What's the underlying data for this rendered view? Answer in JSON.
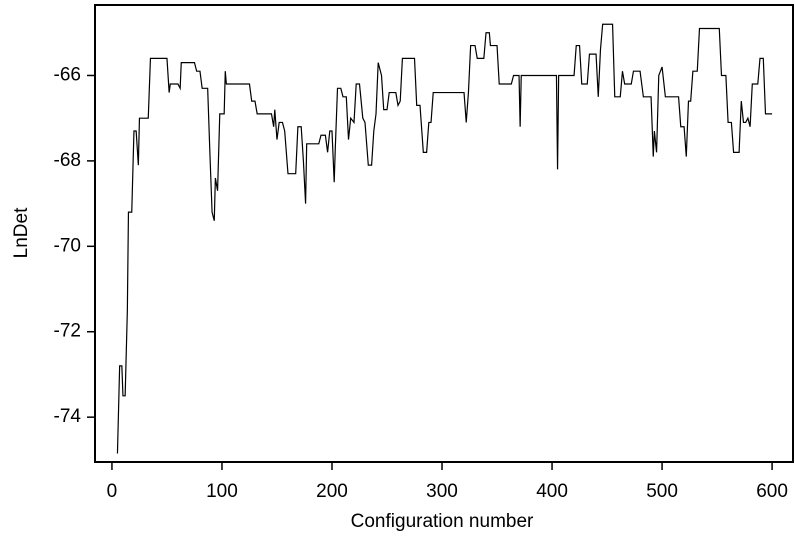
{
  "chart_data": {
    "type": "line",
    "x_label": "Configuration number",
    "y_label": "LnDet",
    "xlim": [
      -15.4,
      619
    ],
    "ylim": [
      -75.05,
      -64.35
    ],
    "xticks": [
      0,
      100,
      200,
      300,
      400,
      500,
      600
    ],
    "yticks": [
      -74,
      -72,
      -70,
      -68,
      -66
    ],
    "grid": false,
    "series": [
      {
        "color": "#000000",
        "x": [
          5,
          7,
          9,
          10,
          12,
          14,
          15,
          18,
          20,
          22,
          24,
          25,
          33,
          35,
          50,
          52,
          53,
          60,
          62,
          63,
          75,
          77,
          80,
          82,
          87,
          89,
          91,
          93,
          94,
          96,
          98,
          102,
          103,
          104,
          125,
          127,
          130,
          132,
          145,
          147,
          148,
          150,
          152,
          155,
          157,
          160,
          167,
          169,
          172,
          174,
          176,
          177,
          188,
          190,
          194,
          196,
          198,
          200,
          202,
          203,
          205,
          208,
          210,
          213,
          215,
          217,
          220,
          222,
          225,
          228,
          230,
          233,
          236,
          238,
          240,
          242,
          245,
          247,
          250,
          252,
          258,
          260,
          262,
          264,
          275,
          277,
          280,
          283,
          286,
          288,
          290,
          292,
          320,
          322,
          324,
          326,
          330,
          332,
          338,
          340,
          343,
          344,
          350,
          352,
          363,
          365,
          370,
          371,
          372,
          404,
          405,
          406,
          420,
          422,
          425,
          427,
          432,
          434,
          440,
          442,
          444,
          446,
          455,
          457,
          462,
          464,
          466,
          472,
          474,
          480,
          483,
          490,
          492,
          493,
          495,
          497,
          500,
          503,
          515,
          517,
          520,
          522,
          524,
          526,
          528,
          532,
          534,
          552,
          554,
          558,
          560,
          563,
          565,
          570,
          572,
          574,
          576,
          578,
          580,
          582,
          587,
          589,
          592,
          594,
          600
        ],
        "values": [
          -74.85,
          -72.8,
          -72.8,
          -73.5,
          -73.5,
          -71.5,
          -69.2,
          -69.2,
          -67.3,
          -67.3,
          -68.1,
          -67.0,
          -67.0,
          -65.6,
          -65.6,
          -66.4,
          -66.2,
          -66.2,
          -66.3,
          -65.7,
          -65.7,
          -65.9,
          -65.9,
          -66.3,
          -66.3,
          -67.8,
          -69.2,
          -69.4,
          -68.4,
          -68.7,
          -66.9,
          -66.9,
          -65.9,
          -66.2,
          -66.2,
          -66.6,
          -66.6,
          -66.9,
          -66.9,
          -67.2,
          -66.8,
          -67.5,
          -67.1,
          -67.1,
          -67.3,
          -68.3,
          -68.3,
          -67.2,
          -67.2,
          -68.0,
          -69.0,
          -67.6,
          -67.6,
          -67.4,
          -67.4,
          -67.8,
          -67.3,
          -67.3,
          -68.5,
          -67.7,
          -66.3,
          -66.3,
          -66.5,
          -66.5,
          -67.5,
          -67.0,
          -67.1,
          -66.2,
          -66.2,
          -67.0,
          -67.1,
          -68.1,
          -68.1,
          -67.3,
          -66.9,
          -65.7,
          -66.0,
          -66.8,
          -66.8,
          -66.4,
          -66.4,
          -66.7,
          -66.6,
          -65.6,
          -65.6,
          -66.7,
          -66.7,
          -67.8,
          -67.8,
          -67.1,
          -67.1,
          -66.4,
          -66.4,
          -67.1,
          -66.4,
          -65.3,
          -65.3,
          -65.6,
          -65.6,
          -65.0,
          -65.0,
          -65.3,
          -65.3,
          -66.2,
          -66.2,
          -66.0,
          -66.0,
          -67.2,
          -66.0,
          -66.0,
          -68.2,
          -66.0,
          -66.0,
          -65.3,
          -65.3,
          -66.2,
          -66.2,
          -65.5,
          -65.5,
          -66.5,
          -65.4,
          -64.8,
          -64.8,
          -66.5,
          -66.5,
          -65.9,
          -66.2,
          -66.2,
          -65.9,
          -65.9,
          -66.5,
          -66.5,
          -67.9,
          -67.3,
          -67.8,
          -66.0,
          -65.8,
          -66.5,
          -66.5,
          -67.2,
          -67.2,
          -67.9,
          -66.6,
          -66.6,
          -65.9,
          -65.9,
          -64.9,
          -64.9,
          -66.0,
          -66.0,
          -67.1,
          -67.1,
          -67.8,
          -67.8,
          -66.6,
          -67.1,
          -67.1,
          -67.0,
          -67.2,
          -66.2,
          -66.2,
          -65.6,
          -65.6,
          -66.9,
          -66.9
        ]
      }
    ]
  }
}
